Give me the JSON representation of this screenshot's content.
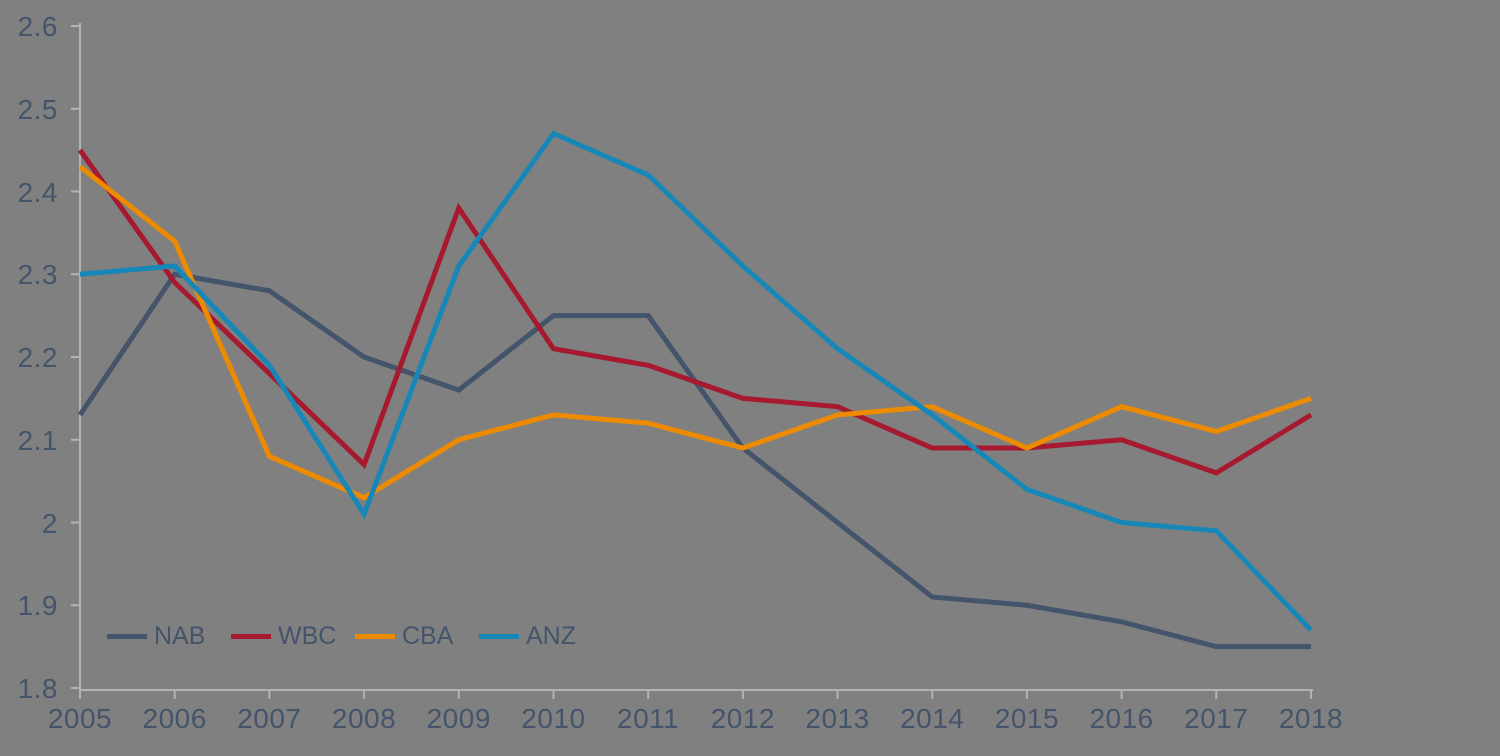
{
  "canvas": {
    "background": "#808080",
    "axis_color": "#B3B3B3",
    "label_color": "#44546A"
  },
  "chart_data": {
    "type": "line",
    "categories": [
      "2005",
      "2006",
      "2007",
      "2008",
      "2009",
      "2010",
      "2011",
      "2012",
      "2013",
      "2014",
      "2015",
      "2016",
      "2017",
      "2018"
    ],
    "y_ticks": [
      "2.6",
      "2.5",
      "2.4",
      "2.3",
      "2.2",
      "2.1",
      "2",
      "1.9",
      "1.8"
    ],
    "ylim": [
      1.8,
      2.6
    ],
    "grid": false,
    "legend_position": "bottom-left-inside",
    "series": [
      {
        "name": "NAB",
        "color": "#44546A",
        "values": [
          2.13,
          2.3,
          2.28,
          2.2,
          2.16,
          2.25,
          2.25,
          2.09,
          2.0,
          1.91,
          1.9,
          1.88,
          1.85,
          1.85
        ]
      },
      {
        "name": "WBC",
        "color": "#A6192E",
        "values": [
          2.45,
          2.29,
          2.18,
          2.07,
          2.38,
          2.21,
          2.19,
          2.15,
          2.14,
          2.09,
          2.09,
          2.1,
          2.06,
          2.13
        ]
      },
      {
        "name": "CBA",
        "color": "#ED8B00",
        "values": [
          2.43,
          2.34,
          2.08,
          2.03,
          2.1,
          2.13,
          2.12,
          2.09,
          2.13,
          2.14,
          2.09,
          2.14,
          2.11,
          2.15
        ]
      },
      {
        "name": "ANZ",
        "color": "#1787B8",
        "values": [
          2.3,
          2.31,
          2.19,
          2.01,
          2.31,
          2.47,
          2.42,
          2.31,
          2.21,
          2.13,
          2.04,
          2.0,
          1.99,
          1.87
        ]
      }
    ]
  }
}
